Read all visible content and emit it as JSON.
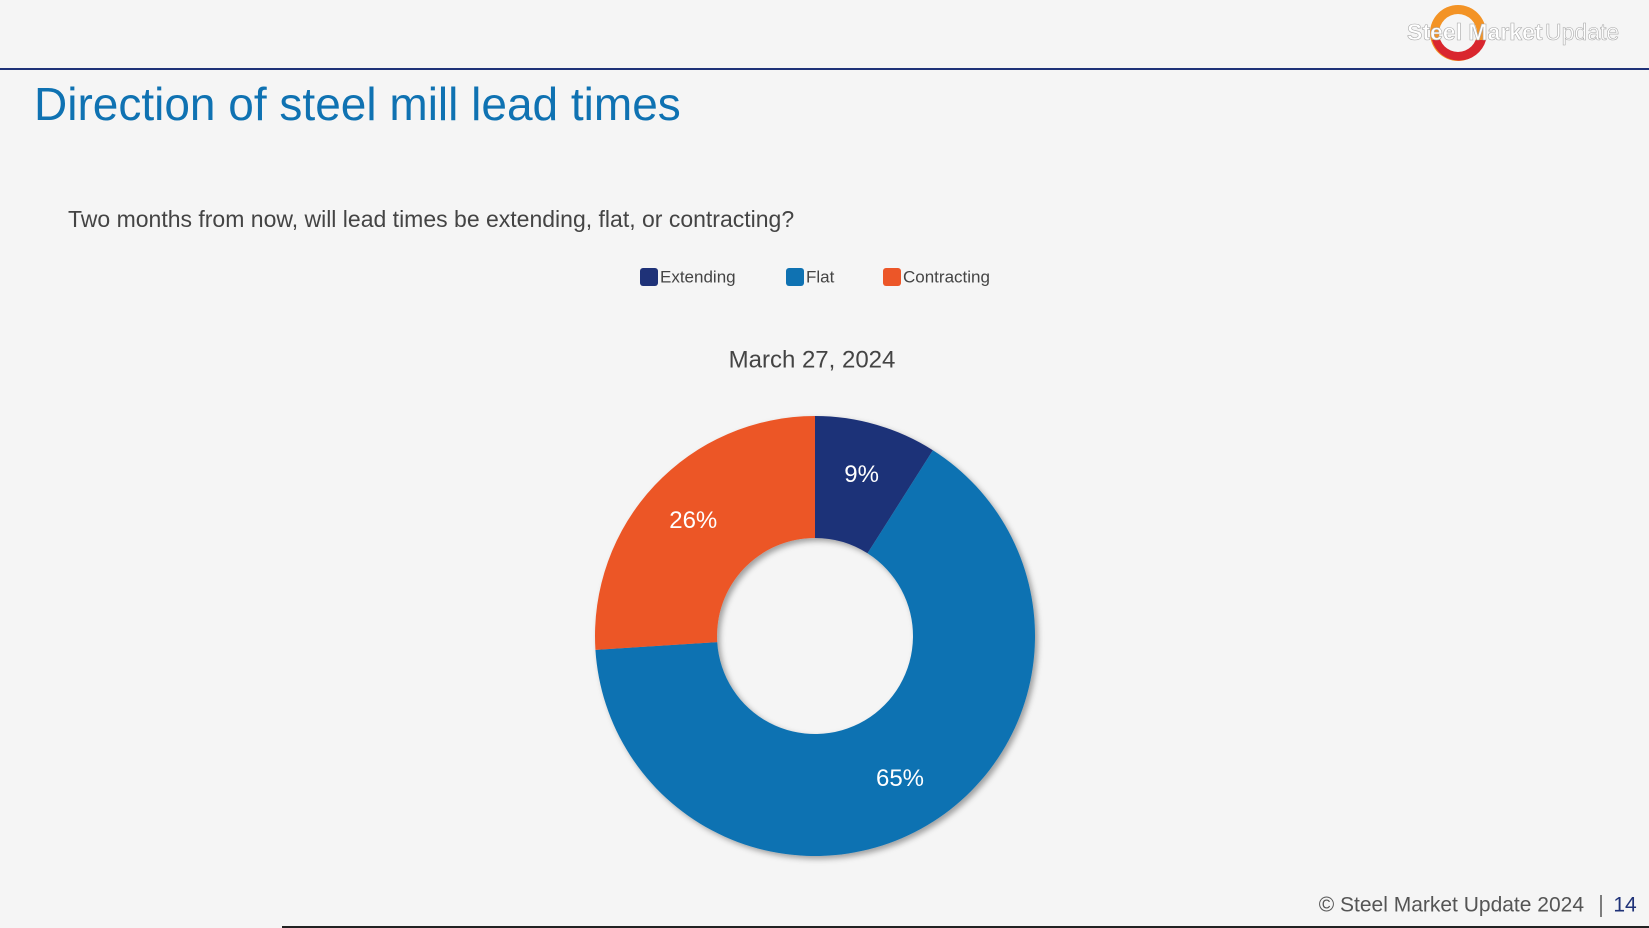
{
  "header": {
    "logo": [
      "Steel Market",
      "Update"
    ]
  },
  "title": "Direction of steel mill lead times",
  "chart_data": {
    "type": "donut",
    "subtitle": "Two months from now, will lead times be extending, flat, or contracting?",
    "title": "March 27, 2024",
    "categories": [
      "Extending",
      "Flat",
      "Contracting"
    ],
    "colors": [
      "#1f3278",
      "#0f72b2",
      "#ec5628"
    ],
    "values": [
      9,
      65,
      26
    ],
    "value_labels": [
      "9%",
      "65%",
      "26%"
    ]
  },
  "footer": {
    "copyright": "© Steel Market Update 2024",
    "page": "14"
  }
}
